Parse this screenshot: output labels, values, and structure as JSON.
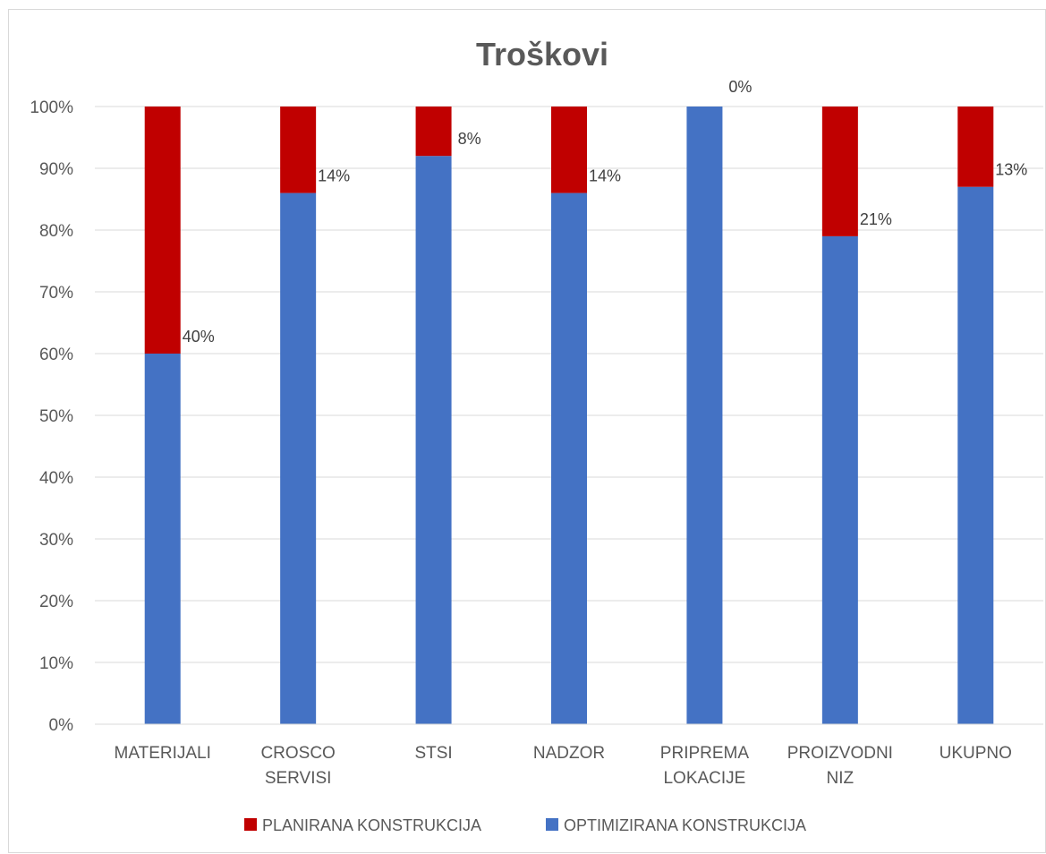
{
  "chart_data": {
    "type": "bar",
    "stacked": true,
    "percent_stacked": true,
    "title": "Troškovi",
    "categories": [
      [
        "MATERIJALI"
      ],
      [
        "CROSCO",
        "SERVISI"
      ],
      [
        "STSI"
      ],
      [
        "NADZOR"
      ],
      [
        "PRIPREMA",
        "LOKACIJE"
      ],
      [
        "PROIZVODNI",
        "NIZ"
      ],
      [
        "UKUPNO"
      ]
    ],
    "series": [
      {
        "name": "OPTIMIZIRANA KONSTRUKCIJA",
        "color": "#4472c4",
        "values": [
          60,
          86,
          92,
          86,
          100,
          79,
          87
        ]
      },
      {
        "name": "PLANIRANA KONSTRUKCIJA",
        "color": "#c00000",
        "values": [
          40,
          14,
          8,
          14,
          0,
          21,
          13
        ]
      }
    ],
    "data_labels": [
      "40%",
      "14%",
      "8%",
      "14%",
      "0%",
      "21%",
      "13%"
    ],
    "y_ticks": [
      "0%",
      "10%",
      "20%",
      "30%",
      "40%",
      "50%",
      "60%",
      "70%",
      "80%",
      "90%",
      "100%"
    ],
    "ylim": [
      0,
      100
    ],
    "grid": true,
    "legend_position": "bottom",
    "legend": [
      "PLANIRANA KONSTRUKCIJA",
      "OPTIMIZIRANA KONSTRUKCIJA"
    ]
  }
}
